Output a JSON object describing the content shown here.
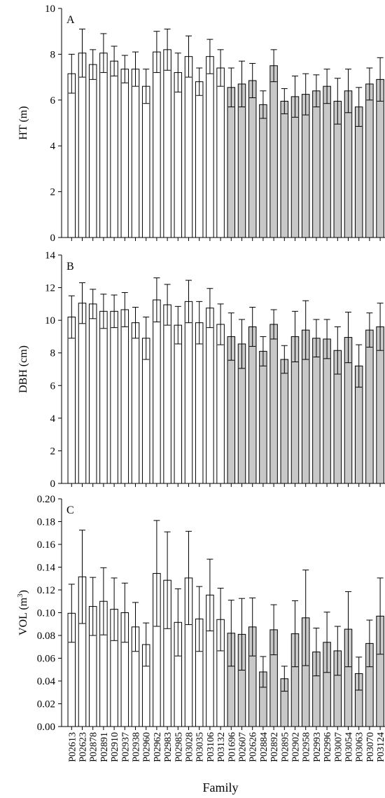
{
  "colors": {
    "white_bar": "#ffffff",
    "grey_bar": "#c8c8c8",
    "stroke": "#000000"
  },
  "chart_data": {
    "type": "bar",
    "xlabel": "Family",
    "categories": [
      "P02613",
      "P02623",
      "P02878",
      "P02891",
      "P02910",
      "P02937",
      "P02938",
      "P02960",
      "P02962",
      "P02983",
      "P02985",
      "P03028",
      "P03035",
      "P03106",
      "P03132",
      "P01696",
      "P02607",
      "P02626",
      "P02884",
      "P02892",
      "P02895",
      "P02902",
      "P02958",
      "P02993",
      "P02996",
      "P03007",
      "P03054",
      "P03063",
      "P03070",
      "P03124"
    ],
    "bar_fill": [
      "white",
      "white",
      "white",
      "white",
      "white",
      "white",
      "white",
      "white",
      "white",
      "white",
      "white",
      "white",
      "white",
      "white",
      "white",
      "grey",
      "grey",
      "grey",
      "grey",
      "grey",
      "grey",
      "grey",
      "grey",
      "grey",
      "grey",
      "grey",
      "grey",
      "grey",
      "grey",
      "grey"
    ],
    "panels": [
      {
        "label": "A",
        "ylabel": "HT (m)",
        "ylim": [
          0,
          10
        ],
        "yticks": [
          "0",
          "2",
          "4",
          "6",
          "8",
          "10"
        ],
        "values": [
          7.15,
          8.05,
          7.55,
          8.05,
          7.7,
          7.35,
          7.35,
          6.6,
          8.1,
          8.2,
          7.2,
          7.9,
          6.8,
          7.9,
          7.4,
          6.55,
          6.7,
          6.85,
          5.8,
          7.5,
          5.95,
          6.15,
          6.25,
          6.4,
          6.6,
          5.95,
          6.4,
          5.7,
          6.7,
          6.9
        ],
        "errors": [
          0.85,
          1.05,
          0.65,
          0.85,
          0.65,
          0.6,
          0.75,
          0.75,
          0.9,
          0.9,
          0.85,
          0.9,
          0.6,
          0.75,
          0.8,
          0.85,
          1.0,
          0.75,
          0.6,
          0.7,
          0.55,
          0.9,
          0.9,
          0.7,
          0.75,
          1.0,
          0.95,
          0.85,
          0.7,
          0.95
        ]
      },
      {
        "label": "B",
        "ylabel": "DBH (cm)",
        "ylim": [
          0,
          14
        ],
        "yticks": [
          "0",
          "2",
          "4",
          "6",
          "8",
          "10",
          "12",
          "14"
        ],
        "values": [
          10.2,
          11.05,
          11.0,
          10.55,
          10.55,
          10.65,
          9.85,
          8.9,
          11.25,
          10.95,
          9.7,
          11.15,
          9.85,
          10.75,
          9.75,
          9.0,
          8.55,
          9.6,
          8.1,
          9.75,
          7.6,
          9.0,
          9.4,
          8.9,
          8.85,
          8.15,
          8.95,
          7.2,
          9.4,
          9.6
        ],
        "errors": [
          1.3,
          1.25,
          0.9,
          1.05,
          1.0,
          1.05,
          0.95,
          1.3,
          1.35,
          1.25,
          1.15,
          1.3,
          1.3,
          1.2,
          1.25,
          1.45,
          1.5,
          1.2,
          0.9,
          0.9,
          0.85,
          1.55,
          1.8,
          1.15,
          1.2,
          1.45,
          1.55,
          1.3,
          1.05,
          1.45
        ]
      },
      {
        "label": "C",
        "ylabel": "VOL (m3)",
        "ylim": [
          0,
          0.2
        ],
        "yticks": [
          "0.00",
          "0.02",
          "0.04",
          "0.06",
          "0.08",
          "0.10",
          "0.12",
          "0.14",
          "0.16",
          "0.18",
          "0.20"
        ],
        "values": [
          0.0995,
          0.1315,
          0.1055,
          0.11,
          0.103,
          0.1,
          0.0875,
          0.072,
          0.1345,
          0.1285,
          0.0915,
          0.1305,
          0.0945,
          0.1155,
          0.094,
          0.082,
          0.081,
          0.0875,
          0.048,
          0.085,
          0.042,
          0.0815,
          0.0955,
          0.0655,
          0.074,
          0.0665,
          0.0855,
          0.0465,
          0.073,
          0.097
        ],
        "errors": [
          0.0255,
          0.041,
          0.0255,
          0.0295,
          0.0275,
          0.026,
          0.0215,
          0.019,
          0.0465,
          0.0425,
          0.0295,
          0.041,
          0.0285,
          0.0315,
          0.0275,
          0.029,
          0.0315,
          0.0255,
          0.0135,
          0.022,
          0.011,
          0.029,
          0.042,
          0.021,
          0.0265,
          0.0215,
          0.033,
          0.0145,
          0.0205,
          0.0335
        ]
      }
    ]
  }
}
